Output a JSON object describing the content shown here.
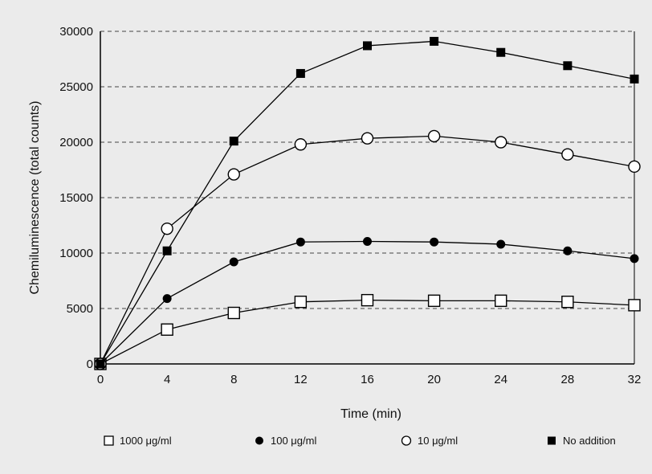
{
  "chart_data": {
    "type": "line",
    "xlabel": "Time (min)",
    "ylabel": "Chemiluminescence (total counts)",
    "x": [
      0,
      4,
      8,
      12,
      16,
      20,
      24,
      28,
      32
    ],
    "xlim": [
      0,
      32
    ],
    "ylim": [
      0,
      30000
    ],
    "x_ticks": [
      "0",
      "4",
      "8",
      "12",
      "16",
      "20",
      "24",
      "28",
      "32"
    ],
    "y_ticks": [
      "0",
      "5000",
      "10000",
      "15000",
      "20000",
      "25000",
      "30000"
    ],
    "grid": "horizontal dashed",
    "legend_position": "bottom",
    "background_color": "#ebebeb",
    "series": [
      {
        "name": "1000 μg/ml",
        "marker": "open-square",
        "values": [
          0,
          3100,
          4600,
          5600,
          5750,
          5700,
          5700,
          5600,
          5300
        ]
      },
      {
        "name": "100 μg/ml",
        "marker": "filled-circle",
        "values": [
          0,
          5900,
          9200,
          11000,
          11050,
          11000,
          10800,
          10200,
          9500
        ]
      },
      {
        "name": "10 μg/ml",
        "marker": "open-circle",
        "values": [
          0,
          12200,
          17100,
          19800,
          20350,
          20550,
          20000,
          18900,
          17800
        ]
      },
      {
        "name": "No addition",
        "marker": "filled-square",
        "values": [
          0,
          10200,
          20100,
          26200,
          28700,
          29100,
          28100,
          26900,
          25700
        ]
      }
    ]
  }
}
